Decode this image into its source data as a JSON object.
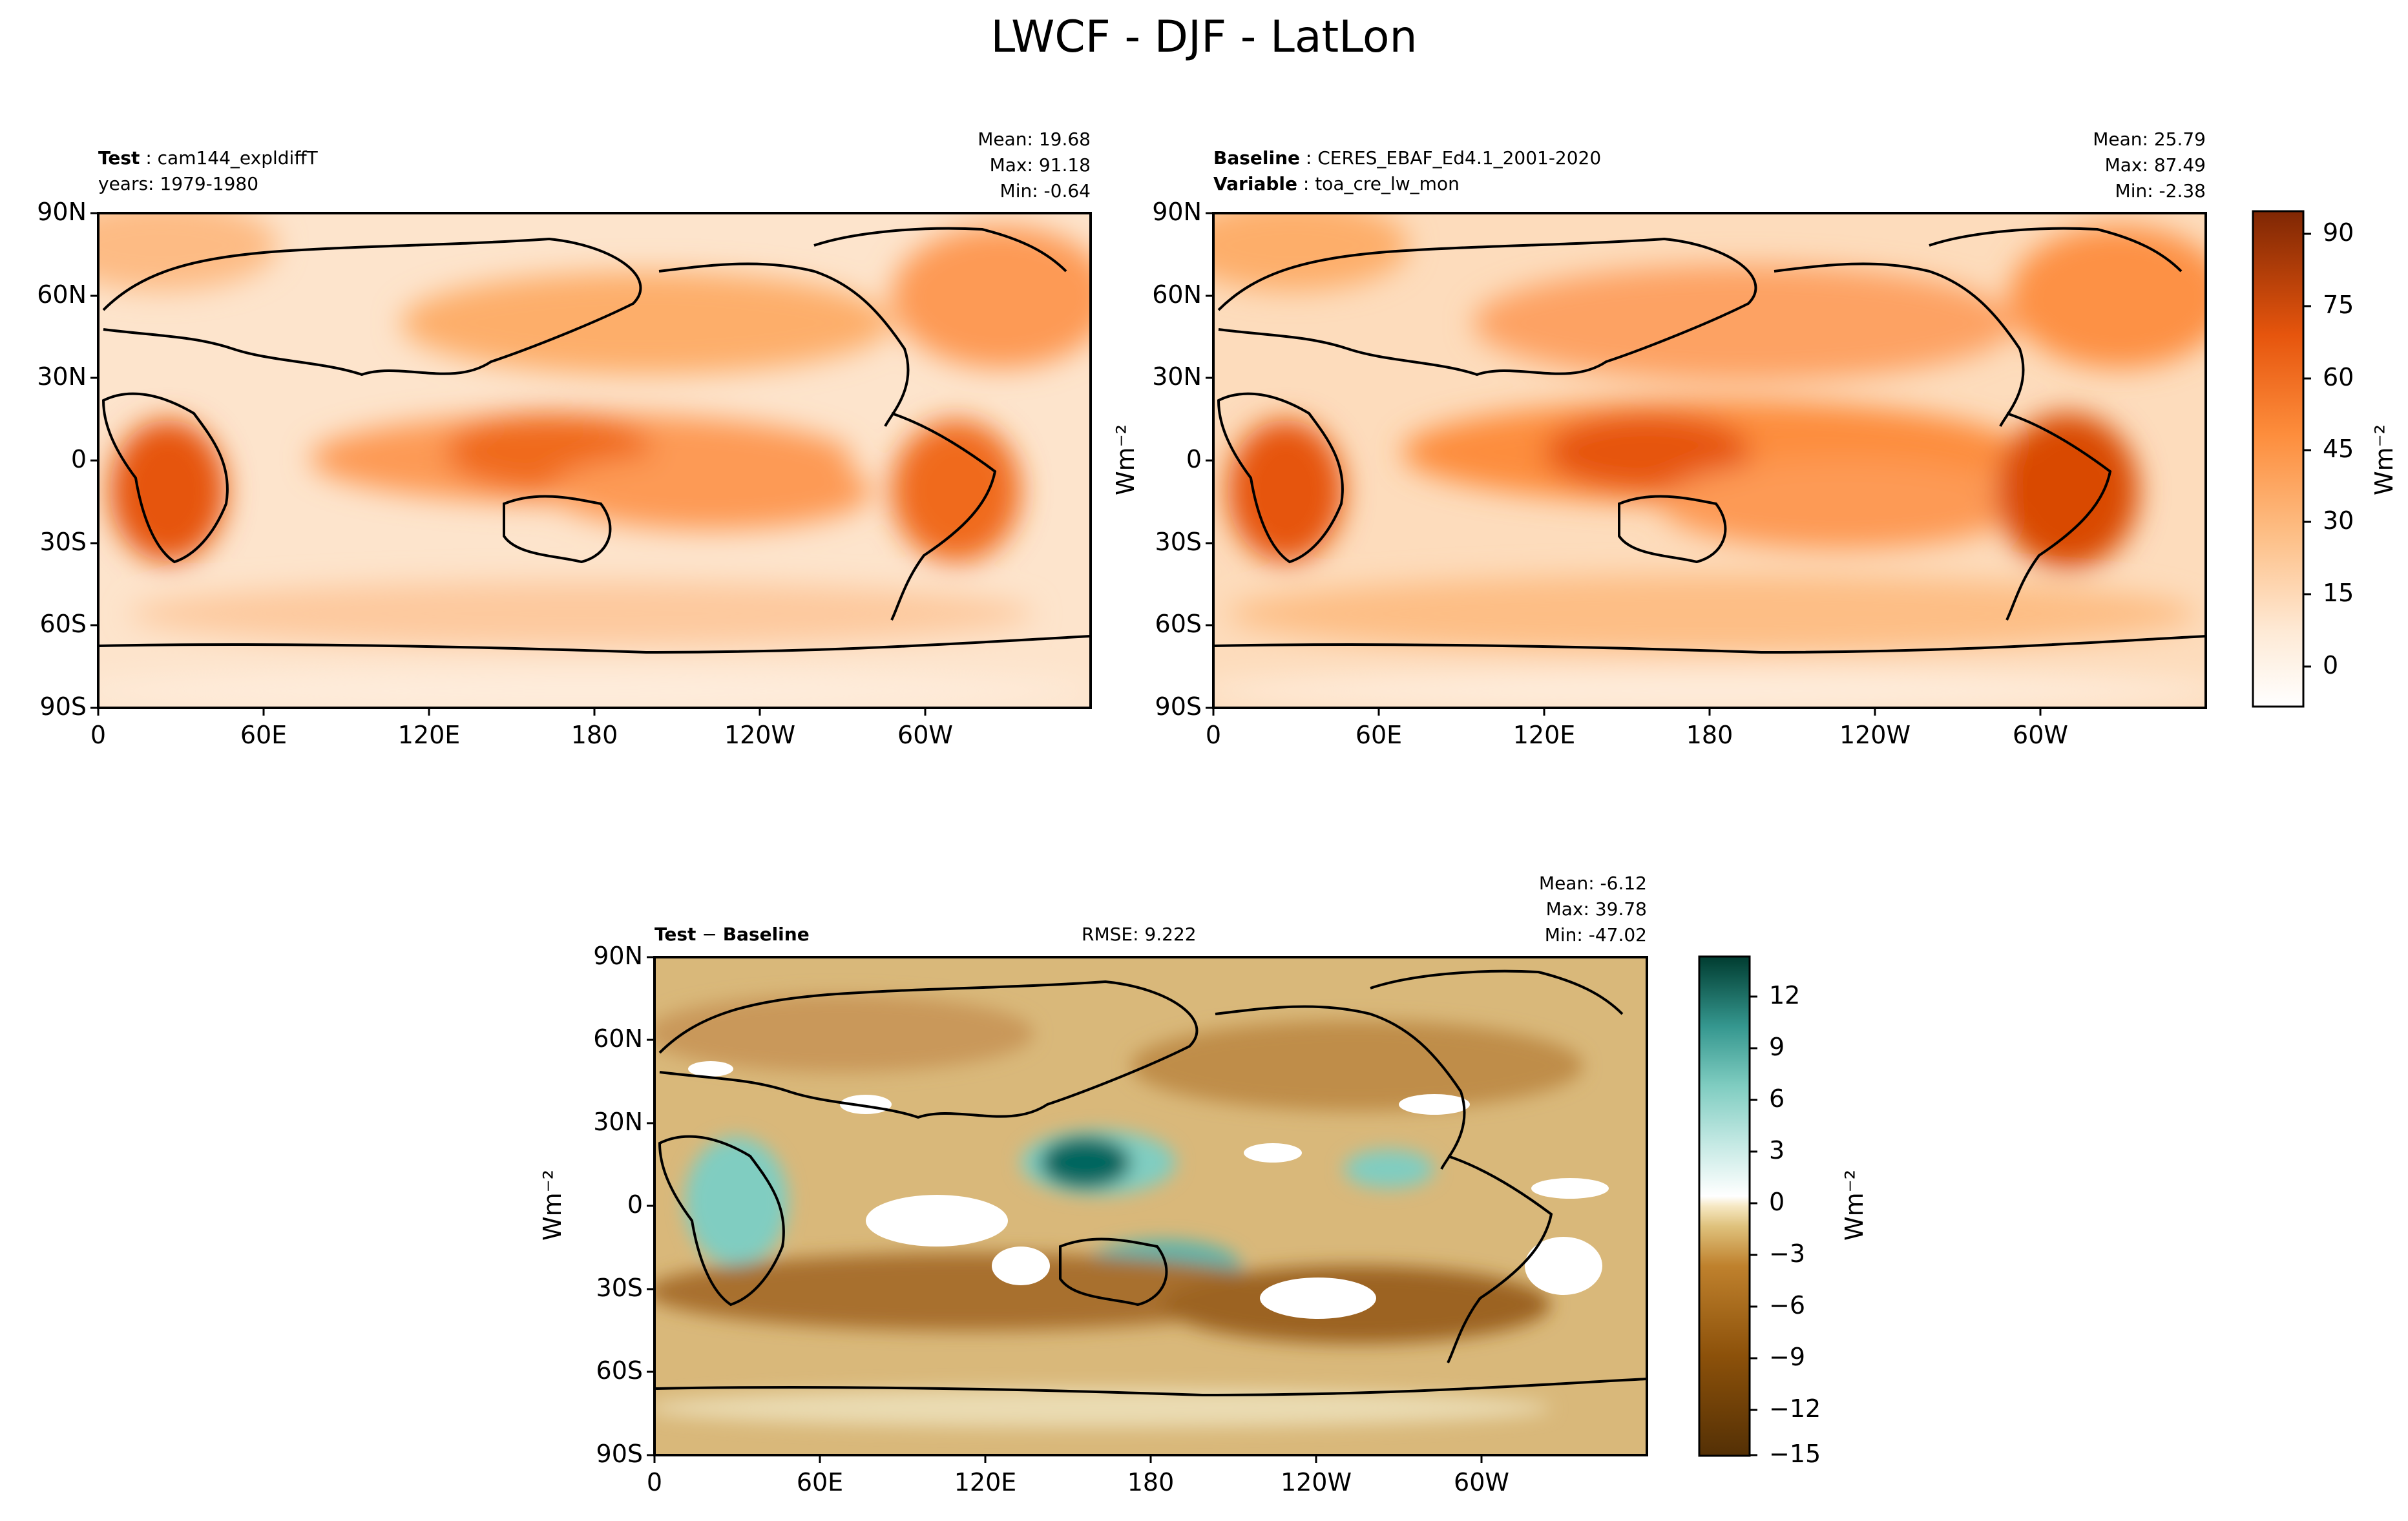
{
  "title": "LWCF - DJF - LatLon",
  "panels": [
    {
      "id": "test",
      "label_bold": "Test",
      "label_value": "cam144_expldiffT",
      "line2": "years: 1979-1980",
      "stats": [
        "Mean: 19.68",
        "Max: 91.18",
        "Min: -0.64"
      ]
    },
    {
      "id": "baseline",
      "label_bold": "Baseline",
      "label_value": "CERES_EBAF_Ed4.1_2001-2020",
      "line2_bold": "Variable",
      "line2_value": "toa_cre_lw_mon",
      "stats": [
        "Mean: 25.79",
        "Max: 87.49",
        "Min: -2.38"
      ]
    },
    {
      "id": "diff",
      "label_bold_a": "Test",
      "label_sep": " − ",
      "label_bold_b": "Baseline",
      "rmse": "RMSE: 9.222",
      "stats": [
        "Mean: -6.12",
        "Max: 39.78",
        "Min: -47.02"
      ]
    }
  ],
  "axes": {
    "yticks": [
      "90N",
      "60N",
      "30N",
      "0",
      "30S",
      "60S",
      "90S"
    ],
    "xticks": [
      "0",
      "60E",
      "120E",
      "180",
      "120W",
      "60W"
    ]
  },
  "units_label": "Wm⁻²",
  "colorbars": {
    "top": {
      "ticks": [
        "90",
        "75",
        "60",
        "45",
        "30",
        "15",
        "0"
      ],
      "colors": [
        "#ffffff",
        "#fdd0a2",
        "#fd8d3c",
        "#d94801",
        "#7f2704"
      ]
    },
    "diff": {
      "ticks": [
        "12",
        "9",
        "6",
        "3",
        "0",
        "−3",
        "−6",
        "−9",
        "−12",
        "−15"
      ],
      "colors": [
        "#543005",
        "#bf812d",
        "#f6e8c3",
        "#ffffff",
        "#80cdc1",
        "#01665e",
        "#003c30"
      ]
    }
  },
  "chart_data": [
    {
      "type": "heatmap",
      "title": "Test : cam144_expldiffT",
      "subtitle": "years: 1979-1980",
      "variable": "LWCF",
      "season": "DJF",
      "xlabel": "",
      "ylabel": "",
      "xticks": [
        "0",
        "60E",
        "120E",
        "180",
        "120W",
        "60W"
      ],
      "yticks": [
        "90N",
        "60N",
        "30N",
        "0",
        "30S",
        "60S",
        "90S"
      ],
      "mean": 19.68,
      "max": 91.18,
      "min": -0.64,
      "colorbar_range": [
        -8,
        95
      ],
      "units": "Wm⁻²"
    },
    {
      "type": "heatmap",
      "title": "Baseline : CERES_EBAF_Ed4.1_2001-2020",
      "subtitle": "Variable : toa_cre_lw_mon",
      "xticks": [
        "0",
        "60E",
        "120E",
        "180",
        "120W",
        "60W"
      ],
      "yticks": [
        "90N",
        "60N",
        "30N",
        "0",
        "30S",
        "60S",
        "90S"
      ],
      "mean": 25.79,
      "max": 87.49,
      "min": -2.38,
      "colorbar_range": [
        -8,
        95
      ],
      "colorbar_ticks": [
        0,
        15,
        30,
        45,
        60,
        75,
        90
      ],
      "units": "Wm⁻²"
    },
    {
      "type": "heatmap",
      "title": "Test − Baseline",
      "rmse": 9.222,
      "xticks": [
        "0",
        "60E",
        "120E",
        "180",
        "120W",
        "60W"
      ],
      "yticks": [
        "90N",
        "60N",
        "30N",
        "0",
        "30S",
        "60S",
        "90S"
      ],
      "mean": -6.12,
      "max": 39.78,
      "min": -47.02,
      "colorbar_range": [
        -15,
        14
      ],
      "colorbar_ticks": [
        -15,
        -12,
        -9,
        -6,
        -3,
        0,
        3,
        6,
        9,
        12
      ],
      "units": "Wm⁻²"
    }
  ]
}
